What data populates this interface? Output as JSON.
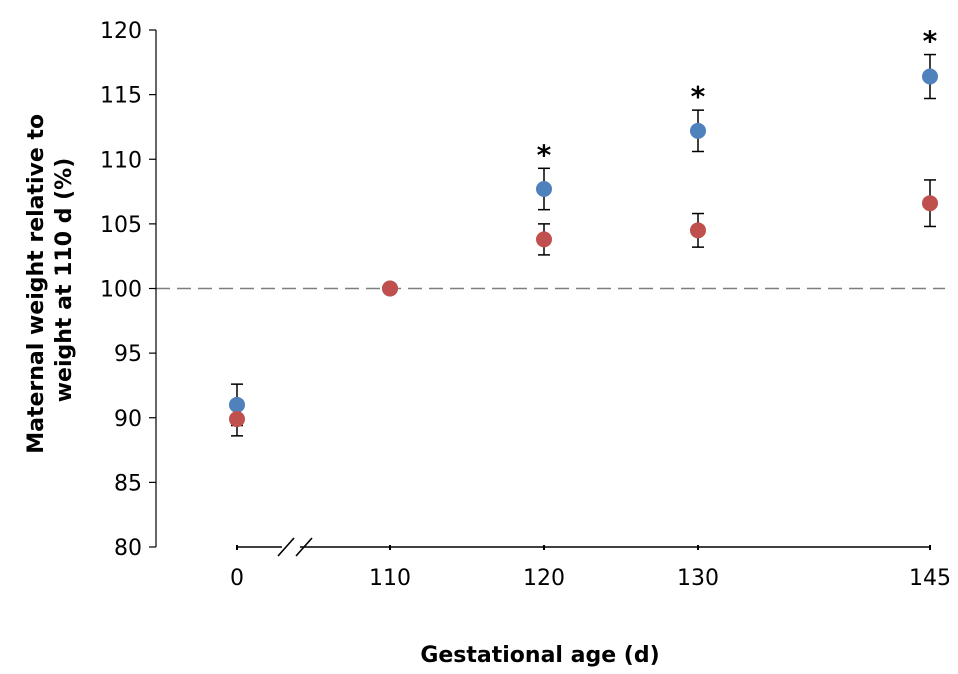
{
  "chart_data": {
    "type": "scatter",
    "title": "",
    "xlabel": "Gestational age (d)",
    "ylabel_lines": [
      "Maternal weight relative to",
      "weight at 110 d (%)"
    ],
    "ylim": [
      80,
      120
    ],
    "yticks": [
      80,
      85,
      90,
      95,
      100,
      105,
      110,
      115,
      120
    ],
    "categories": [
      "0",
      "110",
      "120",
      "130",
      "145"
    ],
    "axis_break_after": "0",
    "reference_line": {
      "y": 100,
      "style": "dashed"
    },
    "series": [
      {
        "color": "#4f81bd",
        "values": [
          91.0,
          100.0,
          107.7,
          112.2,
          116.4
        ],
        "error": [
          1.6,
          0,
          1.6,
          1.6,
          1.7
        ]
      },
      {
        "color": "#c0504d",
        "values": [
          89.9,
          100.0,
          103.8,
          104.5,
          106.6
        ],
        "error": [
          1.3,
          0,
          1.2,
          1.3,
          1.8
        ]
      }
    ],
    "significance_marks": [
      {
        "category": "120",
        "text": "*"
      },
      {
        "category": "130",
        "text": "*"
      },
      {
        "category": "145",
        "text": "*"
      }
    ],
    "grid": false,
    "legend": "none"
  }
}
